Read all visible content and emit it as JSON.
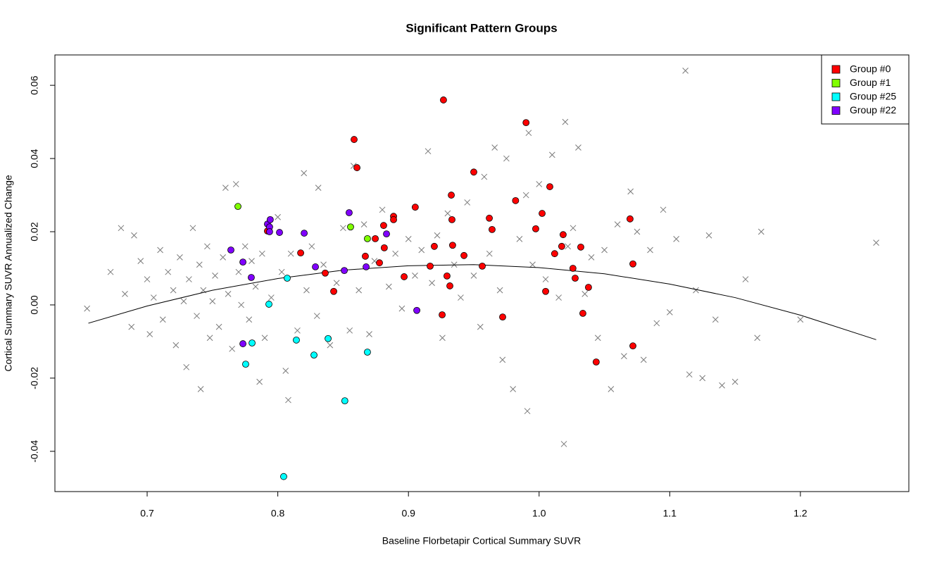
{
  "chart_data": {
    "type": "scatter",
    "title": "Significant Pattern Groups",
    "x_label": "Baseline Florbetapir Cortical Summary SUVR",
    "y_label": "Cortical Summary SUVR Annualized Change",
    "xlim": [
      0.6294,
      1.283
    ],
    "ylim": [
      -0.051,
      0.0683
    ],
    "xticks": [
      0.7,
      0.8,
      0.9,
      {
        "value": 1.0,
        "label": "1.0"
      },
      1.1,
      1.2
    ],
    "yticks": [
      -0.04,
      -0.02,
      {
        "value": 0,
        "label": "0.00"
      },
      0.02,
      0.04,
      0.06
    ],
    "legend": "topright",
    "series": [
      {
        "color": "#7a7a7a",
        "marker": "x",
        "x": [
          0.654,
          0.672,
          0.68,
          0.683,
          0.688,
          0.69,
          0.695,
          0.7,
          0.702,
          0.705,
          0.71,
          0.712,
          0.716,
          0.72,
          0.722,
          0.725,
          0.728,
          0.73,
          0.732,
          0.735,
          0.738,
          0.74,
          0.741,
          0.743,
          0.746,
          0.748,
          0.75,
          0.752,
          0.755,
          0.758,
          0.76,
          0.762,
          0.765,
          0.768,
          0.77,
          0.772,
          0.775,
          0.778,
          0.78,
          0.783,
          0.786,
          0.788,
          0.79,
          0.795,
          0.8,
          0.803,
          0.806,
          0.808,
          0.81,
          0.815,
          0.82,
          0.822,
          0.826,
          0.83,
          0.831,
          0.835,
          0.84,
          0.845,
          0.85,
          0.855,
          0.858,
          0.862,
          0.866,
          0.87,
          0.874,
          0.88,
          0.885,
          0.89,
          0.895,
          0.9,
          0.905,
          0.91,
          0.915,
          0.918,
          0.922,
          0.926,
          0.93,
          0.935,
          0.94,
          0.945,
          0.95,
          0.955,
          0.958,
          0.962,
          0.966,
          0.97,
          0.972,
          0.975,
          0.98,
          0.985,
          0.99,
          0.991,
          0.992,
          0.995,
          1.0,
          1.005,
          1.01,
          1.015,
          1.019,
          1.02,
          1.022,
          1.026,
          1.03,
          1.035,
          1.04,
          1.045,
          1.05,
          1.055,
          1.06,
          1.065,
          1.07,
          1.075,
          1.08,
          1.085,
          1.09,
          1.095,
          1.1,
          1.105,
          1.112,
          1.115,
          1.12,
          1.125,
          1.13,
          1.135,
          1.14,
          1.15,
          1.158,
          1.167,
          1.17,
          1.2,
          1.258
        ],
        "values": [
          -0.001,
          0.009,
          0.021,
          0.003,
          -0.006,
          0.019,
          0.012,
          0.007,
          -0.008,
          0.002,
          0.015,
          -0.004,
          0.009,
          0.004,
          -0.011,
          0.013,
          0.001,
          -0.017,
          0.007,
          0.021,
          -0.003,
          0.011,
          -0.023,
          0.004,
          0.016,
          -0.009,
          0.001,
          0.008,
          -0.006,
          0.013,
          0.032,
          0.003,
          -0.012,
          0.033,
          0.009,
          0.0,
          0.016,
          -0.004,
          0.012,
          0.005,
          -0.021,
          0.014,
          -0.009,
          0.002,
          0.024,
          0.009,
          -0.018,
          -0.026,
          0.014,
          -0.007,
          0.036,
          0.004,
          0.016,
          -0.003,
          0.032,
          0.011,
          -0.011,
          0.006,
          0.021,
          -0.007,
          0.038,
          0.004,
          0.022,
          -0.008,
          0.012,
          0.026,
          0.005,
          0.014,
          -0.001,
          0.018,
          0.008,
          0.015,
          0.042,
          0.006,
          0.019,
          -0.009,
          0.025,
          0.011,
          0.002,
          0.028,
          0.008,
          -0.006,
          0.035,
          0.014,
          0.043,
          0.004,
          -0.015,
          0.04,
          -0.023,
          0.018,
          0.03,
          -0.029,
          0.047,
          0.011,
          0.033,
          0.007,
          0.041,
          0.002,
          -0.038,
          0.05,
          0.016,
          0.021,
          0.043,
          0.003,
          0.013,
          -0.009,
          0.015,
          -0.023,
          0.022,
          -0.014,
          0.031,
          0.02,
          -0.015,
          0.015,
          -0.005,
          0.026,
          -0.002,
          0.018,
          0.064,
          -0.019,
          0.004,
          -0.02,
          0.019,
          -0.004,
          -0.022,
          -0.021,
          0.007,
          -0.009,
          0.02,
          -0.004,
          0.017
        ]
      },
      {
        "color": "#000000",
        "style": "line",
        "x": [
          0.655,
          0.7,
          0.75,
          0.8,
          0.85,
          0.9,
          0.95,
          1.0,
          1.05,
          1.1,
          1.15,
          1.2,
          1.258
        ],
        "values": [
          -0.005,
          -0.0003,
          0.004,
          0.0072,
          0.0095,
          0.0107,
          0.011,
          0.0102,
          0.0085,
          0.0057,
          0.002,
          -0.0028,
          -0.0095
        ]
      },
      {
        "name": "Group #0",
        "color": "#ff0000",
        "x": [
          0.9268,
          0.99,
          0.8584,
          0.8606,
          0.95,
          1.0082,
          0.9328,
          0.982,
          1.0023,
          0.8886,
          0.9052,
          0.8886,
          0.881,
          0.9619,
          0.964,
          0.9333,
          0.9974,
          1.0184,
          0.8746,
          0.7921,
          0.9198,
          0.9338,
          0.8815,
          0.9425,
          1.0173,
          1.0319,
          0.867,
          1.0119,
          0.8175,
          0.8778,
          0.9166,
          0.9565,
          1.0718,
          1.0696,
          1.0259,
          0.8363,
          0.8967,
          0.9295,
          1.0276,
          0.9317,
          1.0378,
          0.8428,
          1.005,
          1.0335,
          0.9258,
          0.9721,
          1.0718,
          1.0437
        ],
        "values": [
          0.056,
          0.0498,
          0.0452,
          0.0375,
          0.0363,
          0.0323,
          0.03,
          0.0285,
          0.025,
          0.0242,
          0.0267,
          0.0233,
          0.0217,
          0.0237,
          0.0206,
          0.0233,
          0.0208,
          0.0192,
          0.0181,
          0.0202,
          0.016,
          0.0163,
          0.0156,
          0.0135,
          0.016,
          0.0158,
          0.0133,
          0.014,
          0.0142,
          0.0115,
          0.0106,
          0.0106,
          0.0112,
          0.0235,
          0.01,
          0.0087,
          0.0077,
          0.0079,
          0.0073,
          0.0052,
          0.0048,
          0.0037,
          0.0037,
          -0.0023,
          -0.0027,
          -0.0033,
          -0.0112,
          -0.0156
        ]
      },
      {
        "name": "Group #1",
        "color": "#80ff00",
        "x": [
          0.7695,
          0.8557,
          0.8686
        ],
        "values": [
          0.0269,
          0.0213,
          0.0181
        ]
      },
      {
        "name": "Group #25",
        "color": "#00ffff",
        "x": [
          0.8072,
          0.7932,
          0.8142,
          0.8385,
          0.7803,
          0.8277,
          0.8686,
          0.7754,
          0.8513,
          0.8045
        ],
        "values": [
          0.0073,
          0.0002,
          -0.0096,
          -0.0092,
          -0.0104,
          -0.0137,
          -0.0129,
          -0.0162,
          -0.0262,
          -0.0469
        ]
      },
      {
        "name": "Group #22",
        "color": "#8000ff",
        "x": [
          0.7921,
          0.7942,
          0.7937,
          0.7937,
          0.8013,
          0.8202,
          0.8546,
          0.8832,
          0.7641,
          0.7733,
          0.8288,
          0.8509,
          0.8676,
          0.7797,
          0.9064,
          0.7733
        ],
        "values": [
          0.0221,
          0.0233,
          0.0213,
          0.02,
          0.0198,
          0.0196,
          0.0252,
          0.0194,
          0.015,
          0.0117,
          0.0104,
          0.0094,
          0.0104,
          0.0075,
          -0.0015,
          -0.0106
        ]
      }
    ]
  }
}
